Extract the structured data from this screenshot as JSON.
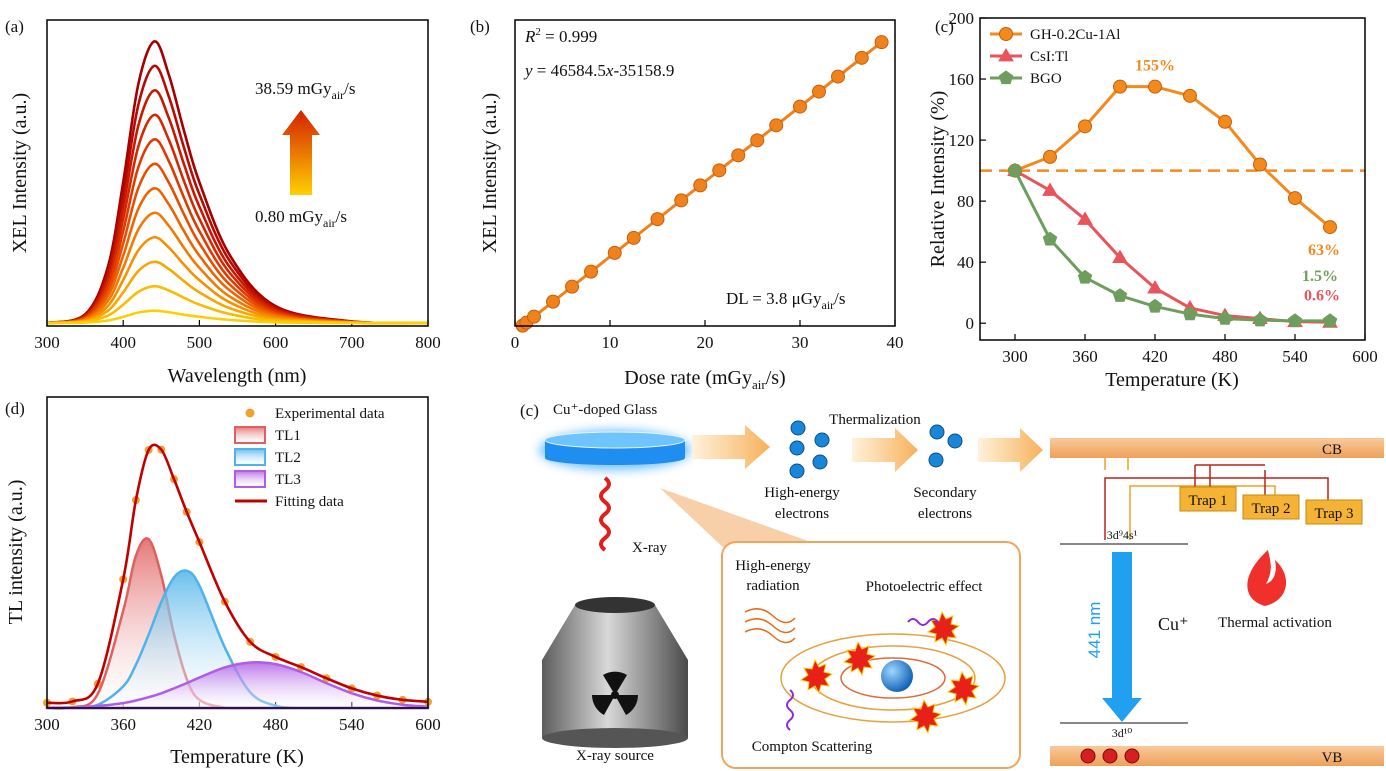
{
  "chart_data": [
    {
      "type": "line",
      "label": "(a)",
      "x_label": "Wavelength (nm)",
      "y_label": "XEL Intensity (a.u.)",
      "smooth": true,
      "annotations": [
        [
          "38.59 mGy",
          "air",
          "/s"
        ],
        [
          "0.80 mGy",
          "air",
          "/s"
        ]
      ],
      "x": [
        300,
        350,
        380,
        400,
        420,
        441,
        460,
        480,
        500,
        540,
        600,
        700,
        800
      ],
      "xlim": [
        300,
        800
      ],
      "xticks": [
        300,
        400,
        500,
        600,
        700,
        800
      ],
      "ylim": [
        0,
        100
      ],
      "series": [
        {
          "color": "#a50000",
          "values": [
            1,
            3.8,
            19.4,
            47,
            79.2,
            93,
            82,
            63.6,
            47,
            23.1,
            6.5,
            1.5,
            1
          ]
        },
        {
          "color": "#b80a00",
          "values": [
            1,
            3.5,
            17.8,
            43,
            72.4,
            85,
            74.9,
            58.1,
            43,
            21.2,
            6.0,
            1.4,
            1
          ]
        },
        {
          "color": "#c81800",
          "values": [
            1,
            3.3,
            16.2,
            39,
            65.6,
            77,
            67.9,
            52.7,
            39,
            19.2,
            5.6,
            1.4,
            1
          ]
        },
        {
          "color": "#d62800",
          "values": [
            1,
            3.0,
            14.6,
            35,
            58.8,
            69,
            60.8,
            47.2,
            35,
            17.3,
            5.1,
            1.3,
            1
          ]
        },
        {
          "color": "#e03a00",
          "values": [
            1,
            2.8,
            13,
            31,
            52,
            61,
            53.8,
            41.8,
            31,
            15.4,
            4.6,
            1.3,
            1
          ]
        },
        {
          "color": "#e84e00",
          "values": [
            1,
            2.6,
            11.4,
            27,
            45.2,
            53,
            46.8,
            36.4,
            27,
            13.5,
            4.1,
            1.3,
            1
          ]
        },
        {
          "color": "#ef6400",
          "values": [
            1,
            2.3,
            9.8,
            23,
            38.4,
            45,
            39.7,
            30.9,
            23,
            11.6,
            3.6,
            1.2,
            1
          ]
        },
        {
          "color": "#f37a00",
          "values": [
            1,
            2.1,
            8.2,
            19,
            31.6,
            37,
            32.7,
            25.5,
            19,
            9.6,
            3.2,
            1.2,
            1
          ]
        },
        {
          "color": "#f69000",
          "values": [
            1,
            1.8,
            6.6,
            15,
            24.8,
            29,
            25.6,
            20,
            15,
            7.7,
            2.7,
            1.1,
            1
          ]
        },
        {
          "color": "#f8a600",
          "values": [
            1,
            1.6,
            5,
            11,
            18,
            21,
            18.6,
            14.6,
            11,
            5.8,
            2.2,
            1.1,
            1
          ]
        },
        {
          "color": "#fabc00",
          "values": [
            1,
            1.4,
            3.4,
            7,
            11.2,
            13,
            11.6,
            9.2,
            7,
            3.9,
            1.7,
            1.1,
            1
          ]
        },
        {
          "color": "#fcd000",
          "values": [
            1,
            1.1,
            1.8,
            3,
            4.4,
            5,
            4.5,
            3.7,
            3,
            2,
            1.2,
            1,
            1
          ]
        }
      ]
    },
    {
      "type": "line",
      "label": "(b)",
      "x_label": [
        "Dose rate (mGy",
        "air",
        "/s)"
      ],
      "y_label": "XEL Intensity (a.u.)",
      "annotations": [
        [
          "R",
          "2",
          " = 0.999"
        ],
        [
          "y",
          " = 46584.5",
          "x",
          "-35158.9"
        ],
        [
          "DL = 3.8 μGy",
          "air",
          "/s"
        ]
      ],
      "x": [
        0.8,
        1.2,
        2,
        4,
        6,
        8,
        10.5,
        12.5,
        15,
        17.5,
        19.5,
        21.5,
        23.5,
        25.5,
        27.5,
        30,
        32,
        34,
        36.5,
        38.59
      ],
      "xlim": [
        0,
        40
      ],
      "xticks": [
        0,
        10,
        20,
        30,
        40
      ],
      "ylim": [
        0,
        1900000
      ],
      "series": [
        {
          "color": "#f0821e",
          "marker": "circle",
          "values": [
            2100,
            20700,
            58000,
            151200,
            244300,
            337500,
            454000,
            547100,
            663600,
            780100,
            873200,
            966400,
            1059600,
            1152700,
            1245900,
            1362400,
            1455500,
            1548700,
            1665200,
            1762500
          ]
        }
      ]
    },
    {
      "type": "line",
      "label": "(c)",
      "x_label": "Temperature (K)",
      "y_label": "Relative Intensity (%)",
      "x": [
        300,
        330,
        360,
        390,
        420,
        450,
        480,
        510,
        540,
        570
      ],
      "xlim": [
        270,
        600
      ],
      "xticks": [
        300,
        360,
        420,
        480,
        540,
        600
      ],
      "ylim": [
        -11,
        200
      ],
      "yticks": [
        0,
        40,
        80,
        120,
        160,
        200
      ],
      "hline": 100,
      "hline_color": "#f28a1e",
      "legend": "upper left",
      "series": [
        {
          "name": "GH-0.2Cu-1Al",
          "color": "#f28a1e",
          "marker": "circle",
          "values": [
            100,
            109,
            129,
            155,
            155,
            149,
            132,
            104,
            82,
            63
          ],
          "value_labels": [
            null,
            null,
            null,
            null,
            "155%",
            null,
            null,
            null,
            null,
            "63%"
          ]
        },
        {
          "name": "CsI:Tl",
          "color": "#e8545a",
          "marker": "triangle",
          "values": [
            100,
            87,
            68,
            43,
            23,
            10,
            5,
            3,
            1,
            0.6
          ],
          "value_labels": [
            null,
            null,
            null,
            null,
            null,
            null,
            null,
            null,
            null,
            "0.6%"
          ]
        },
        {
          "name": "BGO",
          "color": "#6e9e5e",
          "marker": "pentagon",
          "values": [
            100,
            55,
            30,
            18,
            11,
            6,
            3,
            2,
            1.5,
            1.5
          ],
          "value_labels": [
            null,
            null,
            null,
            null,
            null,
            null,
            null,
            null,
            null,
            "1.5%"
          ]
        }
      ]
    },
    {
      "type": "area",
      "label": "(d)",
      "x_label": "Temperature (K)",
      "y_label": "TL intensity (a.u.)",
      "smooth": true,
      "x": [
        300,
        320,
        340,
        360,
        370,
        380,
        390,
        400,
        410,
        420,
        440,
        460,
        480,
        500,
        520,
        540,
        560,
        580,
        600
      ],
      "xlim": [
        300,
        600
      ],
      "xticks": [
        300,
        360,
        420,
        480,
        540,
        600
      ],
      "ylim": [
        0,
        95
      ],
      "legend": "upper right",
      "series": [
        {
          "name": "Experimental data",
          "style": "scatter",
          "color": "#f0a030",
          "values": [
            1.6,
            2.0,
            7.4,
            39.3,
            63.5,
            78.8,
            78.9,
            69.9,
            59.9,
            50.7,
            32.5,
            20.2,
            15.6,
            12.5,
            9.1,
            6.0,
            3.8,
            2.5,
            1.9
          ]
        },
        {
          "name": "TL1",
          "style": "area",
          "color": "#e06060",
          "values": [
            0,
            0.2,
            4.3,
            29.7,
            46.5,
            51.6,
            40.5,
            22.5,
            8.9,
            2.5,
            0.1,
            0,
            0,
            0,
            0,
            0,
            0,
            0,
            0
          ]
        },
        {
          "name": "TL2",
          "style": "area",
          "color": "#4fb3ea",
          "values": [
            0,
            0.1,
            1.0,
            6.6,
            13.2,
            22.4,
            32.4,
            39.9,
            41.9,
            37.4,
            18.5,
            4.8,
            0.7,
            0,
            0,
            0,
            0,
            0,
            0
          ]
        },
        {
          "name": "TL3",
          "style": "area",
          "color": "#b05ce6",
          "values": [
            0.1,
            0.2,
            0.6,
            1.5,
            2.3,
            3.3,
            4.5,
            6.0,
            7.6,
            9.3,
            12.4,
            13.9,
            13.4,
            11.0,
            7.6,
            4.5,
            2.3,
            1.0,
            0.4
          ]
        },
        {
          "name": "Fitting data",
          "style": "line",
          "color": "#c00000",
          "values": [
            1.6,
            2.0,
            7.4,
            39.3,
            63.5,
            78.8,
            78.9,
            69.9,
            59.9,
            50.7,
            32.5,
            20.2,
            15.6,
            12.5,
            9.1,
            6.0,
            3.8,
            2.5,
            1.9
          ]
        }
      ]
    }
  ],
  "diagram": {
    "label": "(c)",
    "glass": "Cu⁺-doped Glass",
    "thermalization": "Thermalization",
    "high_energy_electrons": [
      "High-energy",
      "electrons"
    ],
    "secondary_electrons": [
      "Secondary",
      "electrons"
    ],
    "xray": "X-ray",
    "xray_source": "X-ray source",
    "inset": {
      "radiation": [
        "High-energy",
        "radiation"
      ],
      "photoelectric": "Photoelectric effect",
      "compton": "Compton Scattering"
    },
    "bands": {
      "cb": "CB",
      "vb": "VB"
    },
    "traps": [
      "Trap 1",
      "Trap 2",
      "Trap 3"
    ],
    "levels": {
      "excited": "3d⁹4s¹",
      "ground": "3d¹⁰"
    },
    "emission": "441 nm",
    "ion": "Cu⁺",
    "thermal": "Thermal activation"
  }
}
